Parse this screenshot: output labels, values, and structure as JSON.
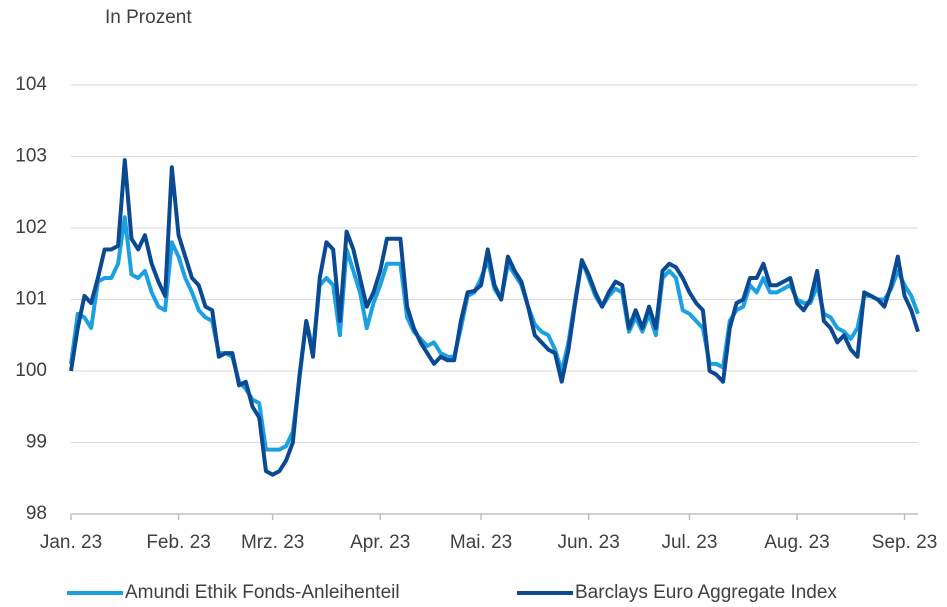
{
  "chart_data": {
    "type": "line",
    "subtitle": "In Prozent",
    "categories": [
      "Jan. 23",
      null,
      null,
      null,
      null,
      null,
      null,
      null,
      null,
      null,
      null,
      null,
      null,
      null,
      null,
      null,
      "Feb. 23",
      null,
      null,
      null,
      null,
      null,
      null,
      null,
      null,
      null,
      null,
      null,
      null,
      null,
      "Mrz. 23",
      null,
      null,
      null,
      null,
      null,
      null,
      null,
      null,
      null,
      null,
      null,
      null,
      null,
      null,
      null,
      "Apr. 23",
      null,
      null,
      null,
      null,
      null,
      null,
      null,
      null,
      null,
      null,
      null,
      null,
      null,
      null,
      "Mai. 23",
      null,
      null,
      null,
      null,
      null,
      null,
      null,
      null,
      null,
      null,
      null,
      null,
      null,
      null,
      null,
      "Jun. 23",
      null,
      null,
      null,
      null,
      null,
      null,
      null,
      null,
      null,
      null,
      null,
      null,
      null,
      null,
      "Jul. 23",
      null,
      null,
      null,
      null,
      null,
      null,
      null,
      null,
      null,
      null,
      null,
      null,
      null,
      null,
      null,
      "Aug. 23",
      null,
      null,
      null,
      null,
      null,
      null,
      null,
      null,
      null,
      null,
      null,
      null,
      null,
      null,
      null,
      "Sep. 23",
      null,
      null
    ],
    "series": [
      {
        "name": "Amundi Ethik Fonds-Anleihenteil",
        "color": "#1ba1e2",
        "values": [
          100.1,
          100.8,
          100.75,
          100.6,
          101.25,
          101.3,
          101.3,
          101.5,
          102.15,
          101.35,
          101.3,
          101.4,
          101.1,
          100.9,
          100.85,
          101.8,
          101.6,
          101.3,
          101.1,
          100.85,
          100.75,
          100.7,
          100.25,
          100.25,
          100.2,
          99.85,
          99.75,
          99.6,
          99.55,
          98.9,
          98.9,
          98.9,
          98.95,
          99.15,
          99.9,
          100.7,
          100.3,
          101.2,
          101.3,
          101.2,
          100.5,
          101.7,
          101.4,
          101.1,
          100.6,
          100.95,
          101.2,
          101.5,
          101.5,
          101.5,
          100.75,
          100.55,
          100.45,
          100.35,
          100.4,
          100.25,
          100.2,
          100.2,
          100.6,
          101.05,
          101.1,
          101.3,
          101.55,
          101.15,
          101.0,
          101.5,
          101.35,
          101.2,
          100.9,
          100.65,
          100.55,
          100.5,
          100.3,
          100.0,
          100.4,
          101.0,
          101.55,
          101.3,
          101.05,
          100.9,
          101.05,
          101.15,
          101.1,
          100.55,
          100.75,
          100.55,
          100.8,
          100.5,
          101.3,
          101.4,
          101.3,
          100.85,
          100.8,
          100.7,
          100.6,
          100.1,
          100.1,
          100.05,
          100.7,
          100.85,
          100.9,
          101.2,
          101.1,
          101.3,
          101.1,
          101.1,
          101.15,
          101.2,
          101.0,
          100.95,
          100.95,
          101.2,
          100.8,
          100.75,
          100.6,
          100.55,
          100.45,
          100.6,
          101.05,
          101.05,
          101.0,
          101.0,
          101.15,
          101.4,
          101.2,
          101.05,
          100.8
        ]
      },
      {
        "name": "Barclays Euro Aggregate Index",
        "color": "#0b4a93",
        "values": [
          100.0,
          100.6,
          101.05,
          100.95,
          101.3,
          101.7,
          101.7,
          101.75,
          102.95,
          101.85,
          101.7,
          101.9,
          101.5,
          101.25,
          101.05,
          102.85,
          101.9,
          101.6,
          101.3,
          101.2,
          100.9,
          100.85,
          100.2,
          100.25,
          100.25,
          99.8,
          99.85,
          99.5,
          99.35,
          98.6,
          98.55,
          98.6,
          98.75,
          99.0,
          99.95,
          100.7,
          100.2,
          101.3,
          101.8,
          101.7,
          100.7,
          101.95,
          101.7,
          101.3,
          100.9,
          101.1,
          101.4,
          101.85,
          101.85,
          101.85,
          100.9,
          100.6,
          100.4,
          100.25,
          100.1,
          100.2,
          100.15,
          100.15,
          100.7,
          101.1,
          101.12,
          101.2,
          101.7,
          101.2,
          101.0,
          101.6,
          101.4,
          101.25,
          100.9,
          100.5,
          100.4,
          100.3,
          100.25,
          99.85,
          100.3,
          100.95,
          101.55,
          101.35,
          101.1,
          100.9,
          101.1,
          101.25,
          101.2,
          100.6,
          100.85,
          100.6,
          100.9,
          100.6,
          101.4,
          101.5,
          101.45,
          101.3,
          101.1,
          100.95,
          100.85,
          100.0,
          99.95,
          99.85,
          100.6,
          100.95,
          101.0,
          101.3,
          101.3,
          101.5,
          101.2,
          101.2,
          101.25,
          101.3,
          100.95,
          100.85,
          101.0,
          101.4,
          100.7,
          100.6,
          100.4,
          100.5,
          100.3,
          100.2,
          101.1,
          101.05,
          101.0,
          100.9,
          101.2,
          101.6,
          101.05,
          100.85,
          100.55
        ]
      }
    ],
    "ylim": [
      98,
      104
    ],
    "yticks": [
      98,
      99,
      100,
      101,
      102,
      103,
      104
    ],
    "grid": true,
    "legend": "bottom"
  }
}
